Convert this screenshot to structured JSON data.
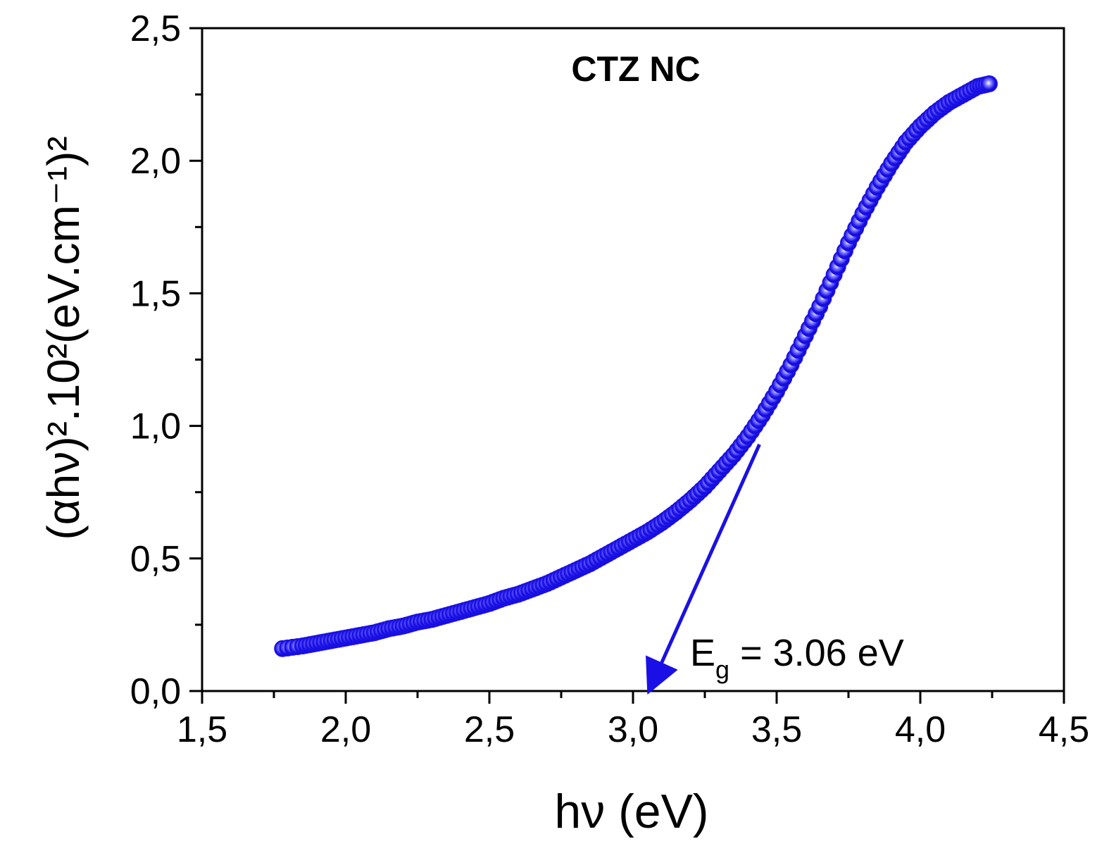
{
  "chart_data": {
    "type": "scatter",
    "title": "CTZ NC",
    "xlabel": "hν (eV)",
    "ylabel": "(αhν)².10²(eV.cm⁻¹)²",
    "xlim": [
      1.5,
      4.5
    ],
    "ylim": [
      0.0,
      2.5
    ],
    "x_ticks": [
      "1,5",
      "2,0",
      "2,5",
      "3,0",
      "3,5",
      "4,0",
      "4,5"
    ],
    "y_ticks": [
      "0,0",
      "0,5",
      "1,0",
      "1,5",
      "2,0",
      "2,5"
    ],
    "grid": false,
    "marker_color": "#1a10e6",
    "arrow_color": "#1a10e6",
    "series": [
      {
        "x": [
          1.78,
          1.85,
          1.9,
          1.95,
          2.0,
          2.05,
          2.1,
          2.15,
          2.2,
          2.25,
          2.3,
          2.35,
          2.4,
          2.45,
          2.5,
          2.55,
          2.6,
          2.65,
          2.7,
          2.75,
          2.8,
          2.85,
          2.9,
          2.95,
          3.0,
          3.05,
          3.1,
          3.15,
          3.2,
          3.25,
          3.3,
          3.35,
          3.4,
          3.45,
          3.5,
          3.55,
          3.6,
          3.65,
          3.7,
          3.75,
          3.8,
          3.85,
          3.9,
          3.95,
          4.0,
          4.05,
          4.1,
          4.15,
          4.2,
          4.24
        ],
        "y": [
          0.16,
          0.17,
          0.18,
          0.19,
          0.2,
          0.21,
          0.22,
          0.235,
          0.245,
          0.26,
          0.27,
          0.285,
          0.3,
          0.315,
          0.33,
          0.35,
          0.365,
          0.385,
          0.405,
          0.43,
          0.455,
          0.48,
          0.51,
          0.54,
          0.57,
          0.6,
          0.635,
          0.675,
          0.72,
          0.77,
          0.83,
          0.89,
          0.96,
          1.04,
          1.13,
          1.23,
          1.34,
          1.45,
          1.57,
          1.69,
          1.8,
          1.9,
          1.99,
          2.07,
          2.13,
          2.18,
          2.22,
          2.25,
          2.28,
          2.29
        ]
      }
    ],
    "annotation": {
      "text_main": "E",
      "text_sub": "g",
      "text_rest": " = 3.06 eV",
      "arrow_from": [
        3.44,
        0.93
      ],
      "arrow_to": [
        3.06,
        0.0
      ]
    }
  }
}
